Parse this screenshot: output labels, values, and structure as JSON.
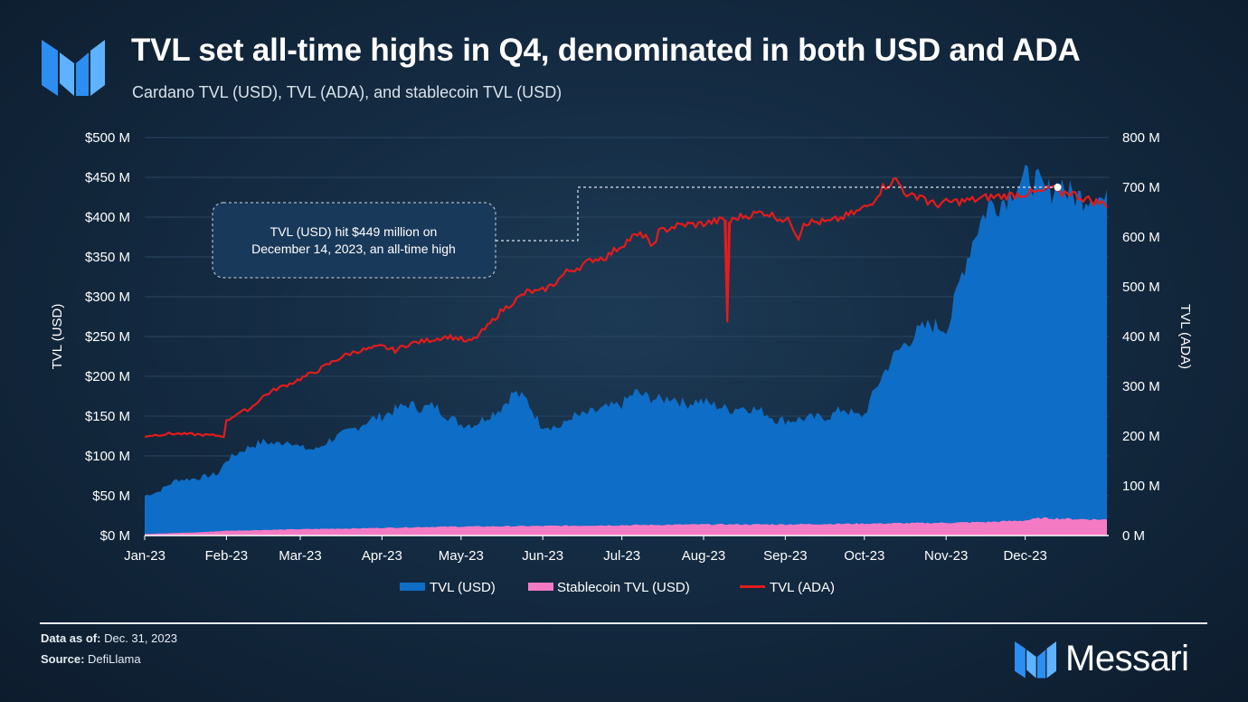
{
  "header": {
    "title": "TVL set all-time highs in Q4, denominated in both USD and ADA",
    "subtitle": "Cardano TVL (USD), TVL (ADA), and stablecoin TVL (USD)"
  },
  "footer": {
    "data_as_of_label": "Data as of:",
    "data_as_of_value": "Dec. 31, 2023",
    "source_label": "Source:",
    "source_value": "DefiLlama",
    "brand": "Messari"
  },
  "colors": {
    "tvl_usd": "#0e6dc6",
    "stablecoin": "#f47ac4",
    "tvl_ada": "#e51b1b",
    "grid": "#2b4560",
    "text": "#ffffff"
  },
  "chart_data": {
    "type": "area",
    "title": "Cardano TVL (USD), TVL (ADA), and stablecoin TVL (USD)",
    "ylabel": "TVL (USD)",
    "y2label": "TVL (ADA)",
    "ylim": [
      0,
      500
    ],
    "y2lim": [
      0,
      800
    ],
    "y_ticks": [
      "$0 M",
      "$50 M",
      "$100 M",
      "$150 M",
      "$200 M",
      "$250 M",
      "$300 M",
      "$350 M",
      "$400 M",
      "$450 M",
      "$500 M"
    ],
    "y2_ticks": [
      "0 M",
      "100 M",
      "200 M",
      "300 M",
      "400 M",
      "500 M",
      "600 M",
      "700 M",
      "800 M"
    ],
    "x_ticks": [
      "Jan-23",
      "Feb-23",
      "Mar-23",
      "Apr-23",
      "May-23",
      "Jun-23",
      "Jul-23",
      "Aug-23",
      "Sep-23",
      "Oct-23",
      "Nov-23",
      "Dec-23"
    ],
    "x_domain_days": 365,
    "legend": [
      "TVL (USD)",
      "Stablecoin TVL (USD)",
      "TVL (ADA)"
    ],
    "annotation": "TVL (USD) hit $449 million on December 14, 2023, an all-time high",
    "annotation_point": {
      "day": 347,
      "value_usd": 449
    },
    "series": [
      {
        "name": "TVL (USD)",
        "axis": "left",
        "unit": "USD M",
        "x": [
          0,
          5,
          12,
          20,
          28,
          31,
          36,
          40,
          45,
          50,
          55,
          59,
          65,
          70,
          75,
          80,
          85,
          90,
          95,
          100,
          105,
          110,
          115,
          120,
          125,
          130,
          135,
          140,
          145,
          150,
          155,
          158,
          162,
          165,
          170,
          175,
          181,
          186,
          190,
          196,
          200,
          205,
          210,
          215,
          220,
          223,
          225,
          230,
          235,
          240,
          245,
          250,
          255,
          260,
          265,
          270,
          273,
          278,
          283,
          288,
          293,
          298,
          303,
          305,
          310,
          315,
          320,
          325,
          330,
          335,
          338,
          342,
          346,
          347,
          350,
          355,
          360,
          365
        ],
        "values": [
          50,
          55,
          70,
          72,
          78,
          95,
          105,
          112,
          118,
          115,
          120,
          110,
          108,
          120,
          127,
          135,
          145,
          150,
          158,
          165,
          160,
          163,
          150,
          140,
          140,
          150,
          160,
          180,
          170,
          140,
          137,
          136,
          150,
          150,
          155,
          160,
          165,
          180,
          175,
          170,
          175,
          165,
          170,
          165,
          160,
          158,
          162,
          160,
          155,
          145,
          145,
          147,
          148,
          150,
          160,
          150,
          152,
          190,
          220,
          240,
          255,
          265,
          262,
          265,
          330,
          380,
          415,
          420,
          440,
          449,
          445,
          430,
          440,
          449,
          430,
          425,
          430,
          418
        ]
      },
      {
        "name": "Stablecoin TVL (USD)",
        "axis": "left",
        "unit": "USD M",
        "x": [
          0,
          20,
          31,
          59,
          80,
          110,
          150,
          181,
          212,
          243,
          273,
          304,
          320,
          334,
          340,
          350,
          365
        ],
        "values": [
          2,
          4,
          6,
          8,
          9,
          11,
          12,
          13,
          14,
          14,
          15,
          16,
          17,
          19,
          22,
          21,
          20
        ]
      },
      {
        "name": "TVL (ADA)",
        "axis": "right",
        "unit": "ADA M",
        "x": [
          0,
          10,
          20,
          30,
          31,
          35,
          40,
          45,
          50,
          55,
          59,
          65,
          70,
          75,
          80,
          85,
          90,
          95,
          100,
          105,
          110,
          115,
          120,
          122,
          125,
          130,
          135,
          140,
          145,
          150,
          155,
          158,
          160,
          165,
          170,
          175,
          180,
          185,
          190,
          192,
          195,
          200,
          205,
          210,
          215,
          220,
          221,
          222,
          225,
          230,
          235,
          240,
          245,
          248,
          250,
          255,
          260,
          265,
          270,
          275,
          280,
          285,
          290,
          295,
          297,
          300,
          305,
          310,
          315,
          320,
          325,
          330,
          335,
          340,
          344,
          347,
          350,
          355,
          360,
          365
        ],
        "values": [
          200,
          205,
          203,
          200,
          230,
          245,
          255,
          280,
          295,
          305,
          315,
          330,
          345,
          360,
          370,
          375,
          380,
          372,
          385,
          390,
          395,
          400,
          395,
          388,
          395,
          420,
          450,
          470,
          490,
          490,
          505,
          520,
          530,
          540,
          555,
          560,
          580,
          600,
          605,
          575,
          610,
          620,
          625,
          625,
          630,
          635,
          430,
          630,
          640,
          645,
          650,
          640,
          630,
          600,
          630,
          630,
          630,
          640,
          650,
          665,
          700,
          715,
          680,
          685,
          670,
          665,
          670,
          672,
          675,
          680,
          682,
          685,
          688,
          690,
          700,
          685,
          692,
          680,
          672,
          665
        ]
      }
    ]
  }
}
